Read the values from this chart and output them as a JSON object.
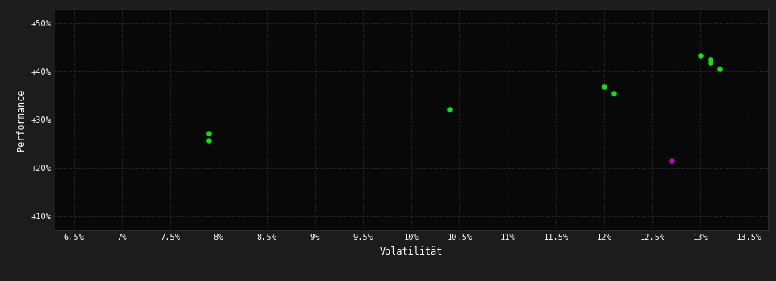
{
  "background_color": "#1c1c1c",
  "plot_bg_color": "#080808",
  "grid_color": "#333333",
  "text_color": "#ffffff",
  "xlabel": "Volatilität",
  "ylabel": "Performance",
  "x_ticks": [
    0.065,
    0.07,
    0.075,
    0.08,
    0.085,
    0.09,
    0.095,
    0.1,
    0.105,
    0.11,
    0.115,
    0.12,
    0.125,
    0.13,
    0.135
  ],
  "x_tick_labels": [
    "6.5%",
    "7%",
    "7.5%",
    "8%",
    "8.5%",
    "9%",
    "9.5%",
    "10%",
    "10.5%",
    "11%",
    "11.5%",
    "12%",
    "12.5%",
    "13%",
    "13.5%"
  ],
  "y_ticks": [
    0.1,
    0.2,
    0.3,
    0.4,
    0.5
  ],
  "y_tick_labels": [
    "+10%",
    "+20%",
    "+30%",
    "+40%",
    "+50%"
  ],
  "xlim": [
    0.063,
    0.137
  ],
  "ylim": [
    0.07,
    0.53
  ],
  "green_points": [
    [
      0.079,
      0.271
    ],
    [
      0.079,
      0.257
    ],
    [
      0.104,
      0.322
    ],
    [
      0.12,
      0.368
    ],
    [
      0.121,
      0.355
    ],
    [
      0.13,
      0.432
    ],
    [
      0.131,
      0.424
    ],
    [
      0.131,
      0.417
    ],
    [
      0.132,
      0.405
    ]
  ],
  "magenta_points": [
    [
      0.127,
      0.214
    ]
  ],
  "green_color": "#00ee00",
  "magenta_color": "#cc00cc",
  "marker_size": 22
}
